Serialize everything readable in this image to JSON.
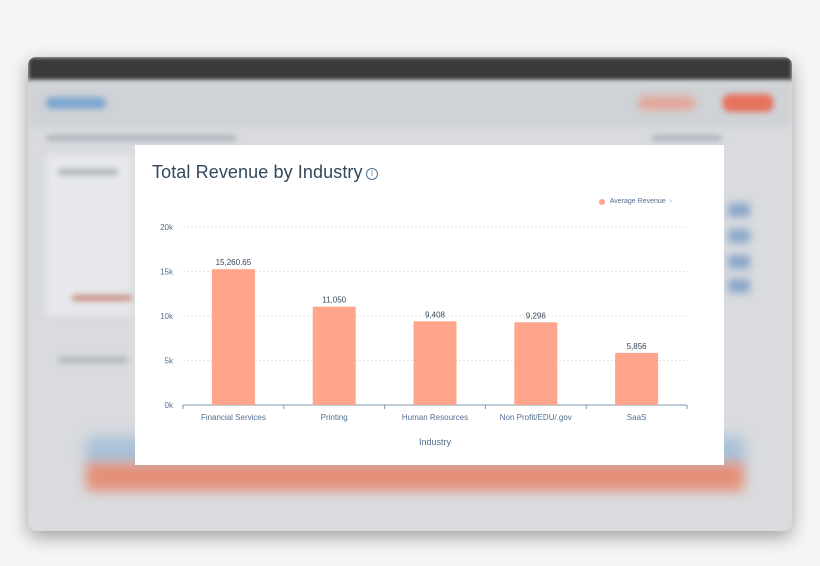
{
  "chart_data": {
    "type": "bar",
    "title": "Total Revenue by Industry",
    "xlabel": "Industry",
    "ylabel": "",
    "categories": [
      "Financial Services",
      "Printing",
      "Human Resources",
      "Non Profit/EDU/.gov",
      "SaaS"
    ],
    "series": [
      {
        "name": "Average Revenue",
        "values": [
          15260.65,
          11050,
          9408,
          9296,
          5856
        ]
      }
    ],
    "data_labels": [
      "15,260.65",
      "11,050",
      "9,408",
      "9,296",
      "5,856"
    ],
    "yticks": [
      0,
      5000,
      10000,
      15000,
      20000
    ],
    "ytick_labels": [
      "0k",
      "5k",
      "10k",
      "15k",
      "20k"
    ],
    "ylim": [
      0,
      20000
    ],
    "grid": true,
    "legend_position": "top-right",
    "bar_color": "#ffa58c",
    "grid_color": "#dfe3eb",
    "axis_color": "#7c98b6"
  },
  "info_icon": "info-icon",
  "info_glyph": "i",
  "legend_chevron": "›"
}
